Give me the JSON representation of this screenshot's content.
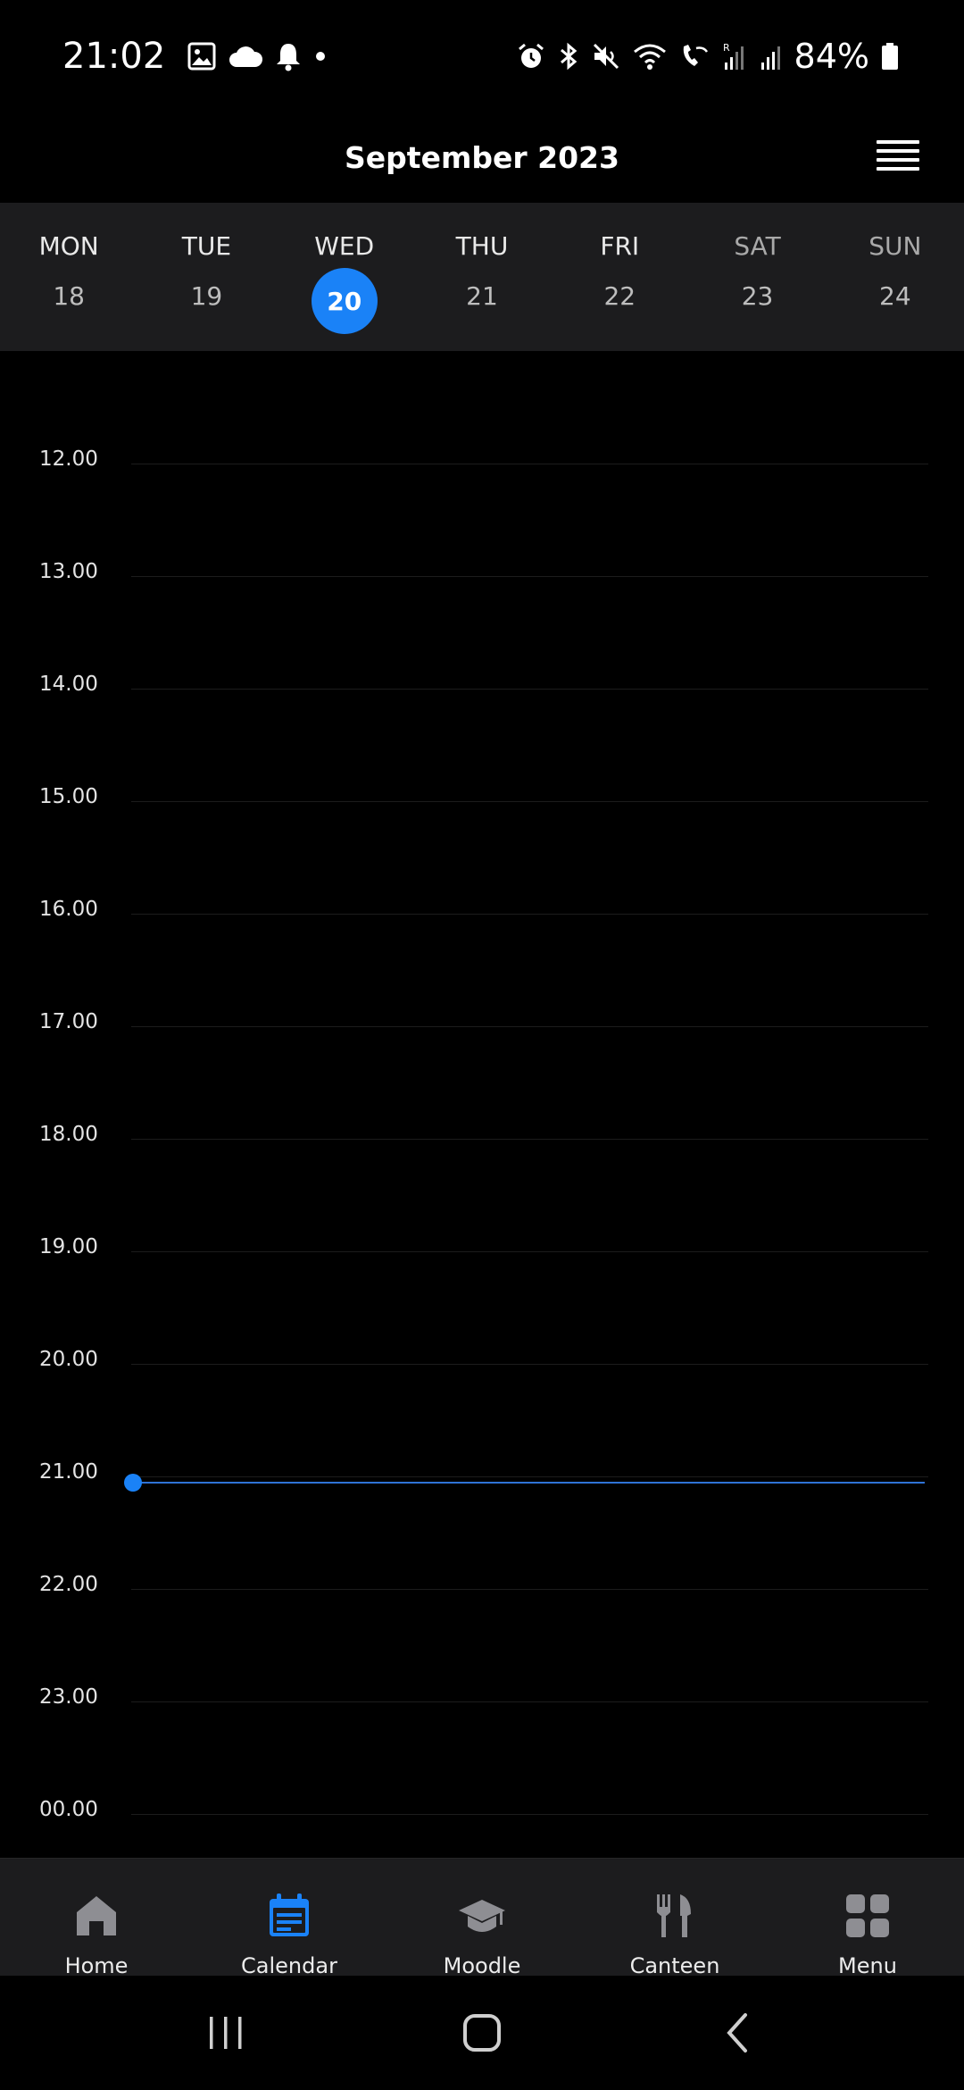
{
  "status_bar": {
    "time": "21:02",
    "battery_percent": "84%",
    "icons_left": [
      "gallery-icon",
      "cloud-icon",
      "bell-icon",
      "dot-icon"
    ],
    "icons_right": [
      "alarm-icon",
      "bluetooth-icon",
      "mute-icon",
      "wifi-icon",
      "wifi-calling-icon",
      "signal-icon",
      "signal-icon",
      "battery-icon"
    ]
  },
  "header": {
    "title": "September 2023",
    "menu_icon": "hamburger-icon"
  },
  "week": {
    "days": [
      {
        "name": "MON",
        "num": "18"
      },
      {
        "name": "TUE",
        "num": "19"
      },
      {
        "name": "WED",
        "num": "20"
      },
      {
        "name": "THU",
        "num": "21"
      },
      {
        "name": "FRI",
        "num": "22"
      },
      {
        "name": "SAT",
        "num": "23"
      },
      {
        "name": "SUN",
        "num": "24"
      }
    ],
    "selected_index": 2
  },
  "timeline": {
    "hours": [
      "12.00",
      "13.00",
      "14.00",
      "15.00",
      "16.00",
      "17.00",
      "18.00",
      "19.00",
      "20.00",
      "21.00",
      "22.00",
      "23.00",
      "00.00"
    ],
    "now_marker_color": "#1a82f7"
  },
  "bottom_nav": {
    "items": [
      {
        "label": "Home",
        "icon": "home-icon"
      },
      {
        "label": "Calendar",
        "icon": "calendar-icon"
      },
      {
        "label": "Moodle",
        "icon": "graduation-cap-icon"
      },
      {
        "label": "Canteen",
        "icon": "fork-knife-icon"
      },
      {
        "label": "Menu",
        "icon": "grid-icon"
      }
    ],
    "active_index": 1,
    "active_color": "#1a82f7"
  },
  "system_nav": {
    "buttons": [
      "recent-apps-icon",
      "home-button-icon",
      "back-icon"
    ]
  }
}
